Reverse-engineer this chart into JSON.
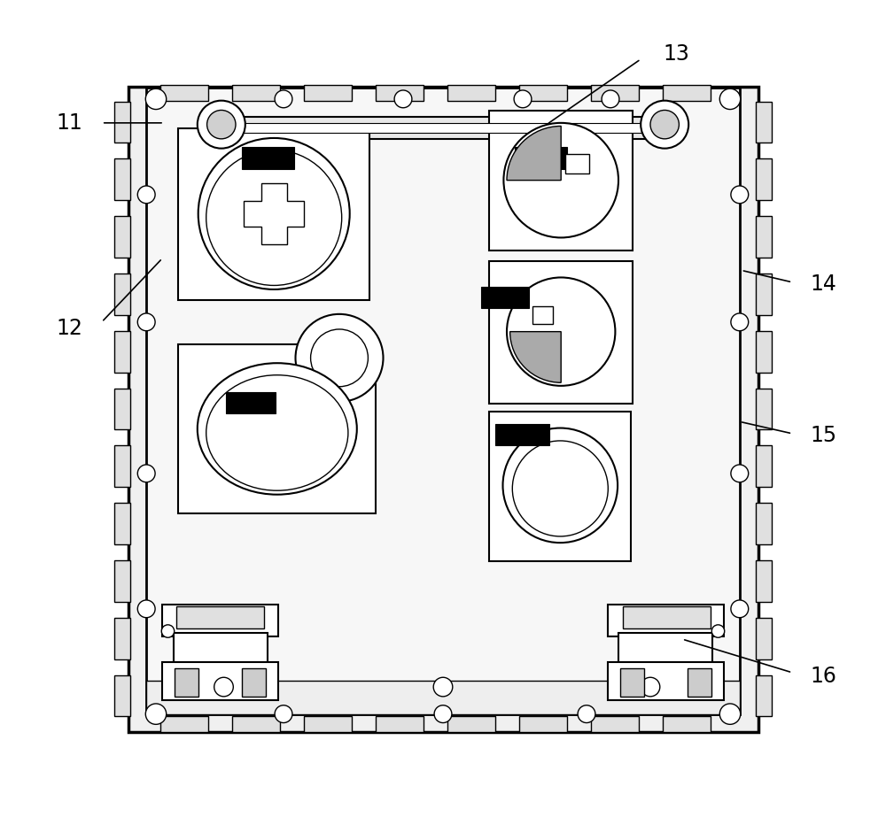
{
  "bg_color": "#ffffff",
  "fig_width": 10.0,
  "fig_height": 9.23,
  "line_color": "#000000",
  "gray_light": "#d8d8d8",
  "gray_med": "#b0b0b0",
  "black": "#000000",
  "white": "#ffffff"
}
